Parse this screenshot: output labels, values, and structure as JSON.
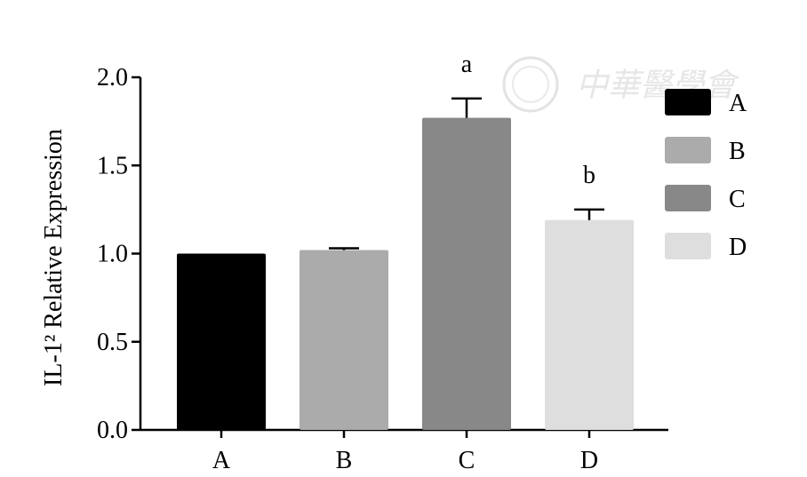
{
  "chart_data": {
    "type": "bar",
    "categories": [
      "A",
      "B",
      "C",
      "D"
    ],
    "series": [
      {
        "values": [
          1.0,
          1.02,
          1.77,
          1.19
        ],
        "errors": [
          0.0,
          0.01,
          0.11,
          0.06
        ],
        "colors": [
          "#000000",
          "#ababab",
          "#888888",
          "#dedede"
        ]
      }
    ],
    "significance": [
      "",
      "",
      "a",
      "b"
    ],
    "title": "",
    "xlabel": "",
    "ylabel": "IL-1² Relative Expression",
    "ylim": [
      0,
      2.0
    ],
    "yticks": [
      "0.0",
      "0.5",
      "1.0",
      "1.5",
      "2.0"
    ],
    "grid": false,
    "legend": {
      "placement": "right",
      "entries": [
        "A",
        "B",
        "C",
        "D"
      ]
    }
  },
  "watermark": {
    "text": "中華醫學會"
  }
}
